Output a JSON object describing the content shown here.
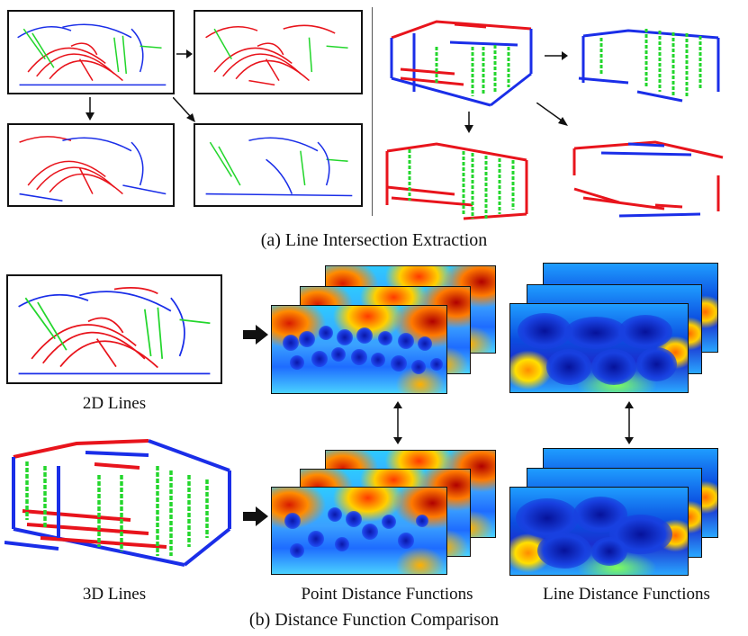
{
  "section_a": {
    "caption": "(a) Line Intersection Extraction"
  },
  "section_b": {
    "caption": "(b) Distance Function Comparison",
    "label_2d": "2D Lines",
    "label_3d": "3D Lines",
    "label_point": "Point Distance Functions",
    "label_line": "Line Distance Functions"
  },
  "colors": {
    "red_lines": "#e8141c",
    "blue_lines": "#1a2ee8",
    "green_lines": "#23d62c",
    "border": "#111111"
  }
}
